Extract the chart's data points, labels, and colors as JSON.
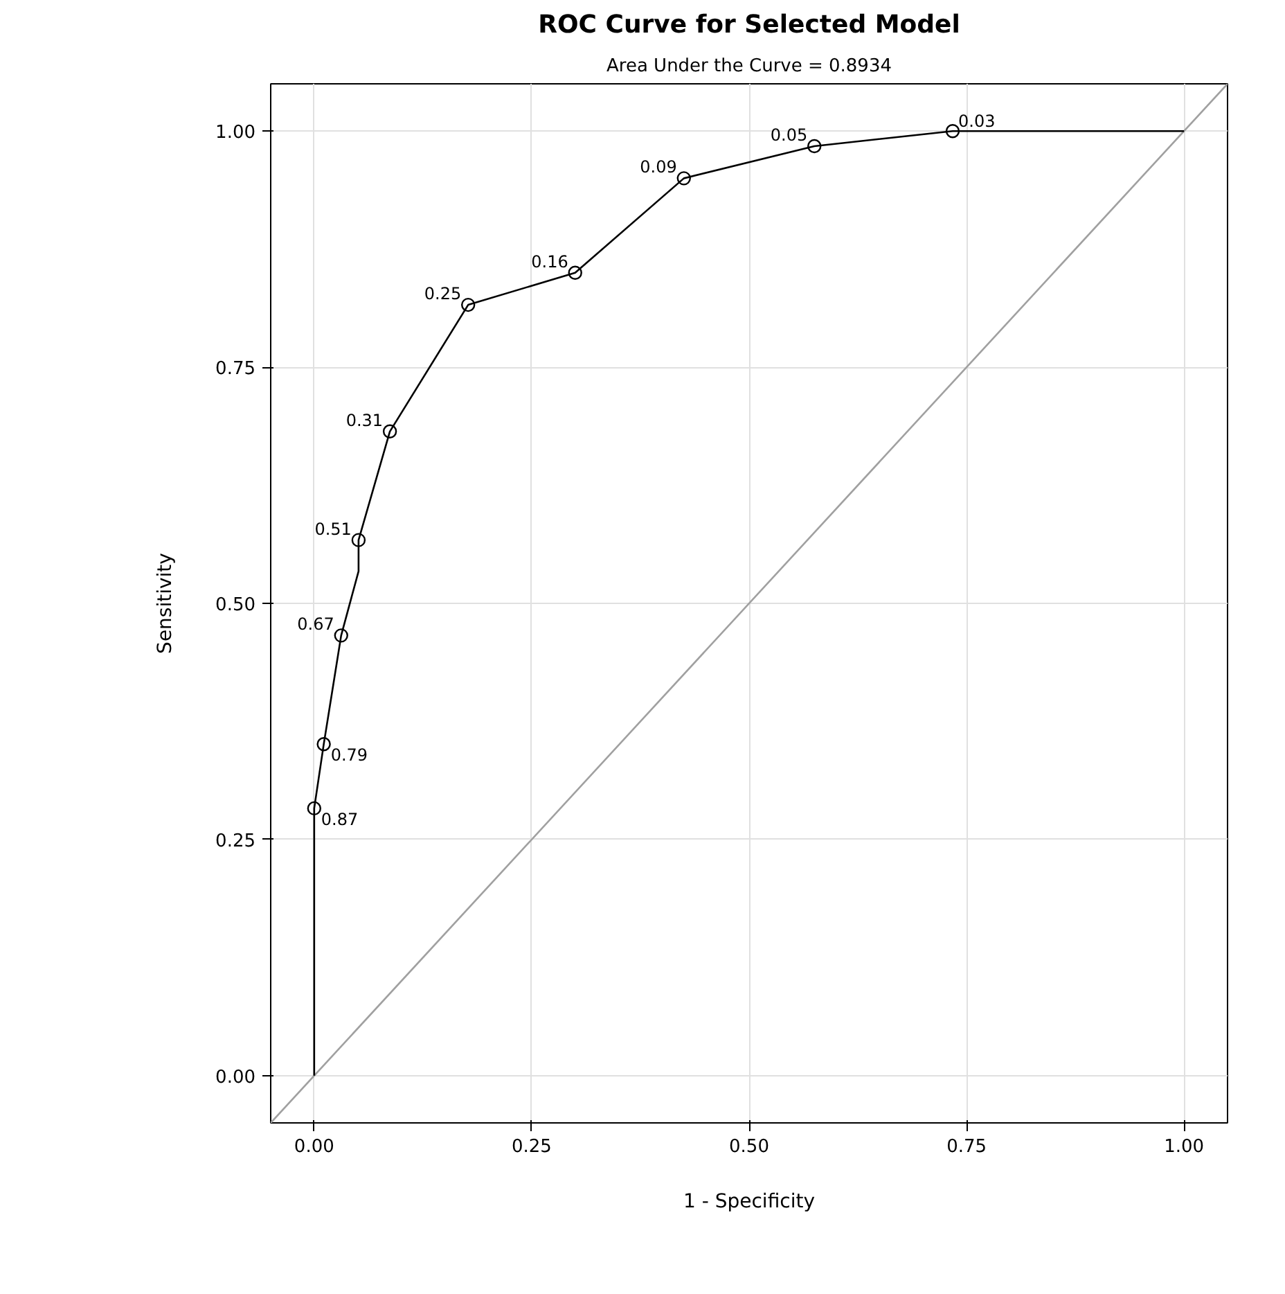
{
  "chart_data": {
    "type": "line",
    "title": "ROC Curve for Selected Model",
    "subtitle": "Area Under the Curve = 0.8934",
    "xlabel": "1 - Specificity",
    "ylabel": "Sensitivity",
    "xlim": [
      -0.05,
      1.05
    ],
    "ylim": [
      -0.05,
      1.05
    ],
    "xticks": [
      {
        "value": 0,
        "label": "0.00"
      },
      {
        "value": 0.25,
        "label": "0.25"
      },
      {
        "value": 0.5,
        "label": "0.50"
      },
      {
        "value": 0.75,
        "label": "0.75"
      },
      {
        "value": 1,
        "label": "1.00"
      }
    ],
    "yticks": [
      {
        "value": 0,
        "label": "0.00"
      },
      {
        "value": 0.25,
        "label": "0.25"
      },
      {
        "value": 0.5,
        "label": "0.50"
      },
      {
        "value": 0.75,
        "label": "0.75"
      },
      {
        "value": 1,
        "label": "1.00"
      }
    ],
    "grid": true,
    "series": [
      {
        "color": "#a0a0a0",
        "x": [
          -0.05,
          1.05
        ],
        "values": [
          -0.05,
          1.05
        ]
      },
      {
        "color": "#000000",
        "x": [
          0,
          0,
          0.011,
          0.031,
          0.051,
          0.051,
          0.087,
          0.177,
          0.3,
          0.425,
          0.575,
          0.734,
          1
        ],
        "values": [
          0,
          0.283,
          0.351,
          0.466,
          0.534,
          0.567,
          0.682,
          0.816,
          0.85,
          0.95,
          0.984,
          1.0,
          1.0
        ]
      },
      {
        "type": "scatter",
        "marker": "circle",
        "color": "#000000",
        "x": [
          0,
          0.011,
          0.031,
          0.051,
          0.087,
          0.177,
          0.3,
          0.425,
          0.575,
          0.734
        ],
        "values": [
          0.283,
          0.351,
          0.466,
          0.567,
          0.682,
          0.816,
          0.85,
          0.95,
          0.984,
          1.0
        ]
      }
    ],
    "annotations": [
      {
        "text": "0.87",
        "x": 0,
        "y": 0.283
      },
      {
        "text": "0.79",
        "x": 0.011,
        "y": 0.351
      },
      {
        "text": "0.67",
        "x": 0.031,
        "y": 0.466
      },
      {
        "text": "0.51",
        "x": 0.051,
        "y": 0.567
      },
      {
        "text": "0.31",
        "x": 0.087,
        "y": 0.682
      },
      {
        "text": "0.25",
        "x": 0.177,
        "y": 0.816
      },
      {
        "text": "0.16",
        "x": 0.3,
        "y": 0.85
      },
      {
        "text": "0.09",
        "x": 0.425,
        "y": 0.95
      },
      {
        "text": "0.05",
        "x": 0.575,
        "y": 0.984
      },
      {
        "text": "0.03",
        "x": 0.734,
        "y": 1.0
      }
    ]
  }
}
